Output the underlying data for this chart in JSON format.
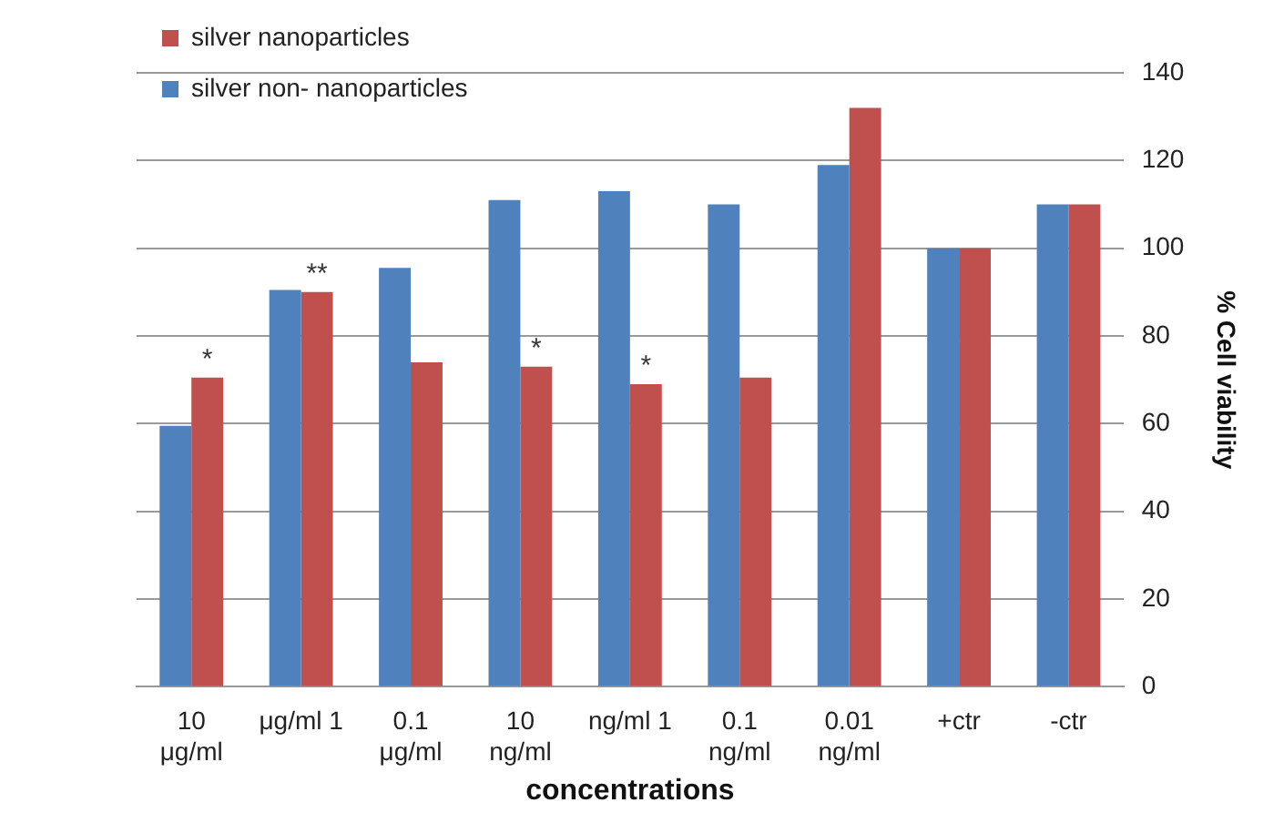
{
  "chart_data": {
    "type": "bar",
    "xlabel": "concentrations",
    "ylabel": "% Cell viability",
    "categories": [
      "10\nμg/ml",
      "μg/ml 1",
      "0.1\nμg/ml",
      "10\nng/ml",
      "ng/ml 1",
      "0.1\nng/ml",
      "0.01\nng/ml",
      "+ctr",
      "-ctr"
    ],
    "series": [
      {
        "name": "silver non- nanoparticles",
        "color": "#4f81bd",
        "values": [
          59.5,
          90.5,
          95.5,
          111,
          113,
          110,
          119,
          100,
          110
        ]
      },
      {
        "name": "silver nanoparticles",
        "color": "#c0504d",
        "values": [
          70.5,
          90,
          74,
          73,
          69,
          70.5,
          132,
          100,
          110
        ]
      }
    ],
    "ylim": [
      0,
      140
    ],
    "yticks": [
      0,
      20,
      40,
      60,
      80,
      100,
      120,
      140
    ],
    "grid": "y",
    "legend": "top left",
    "annotations": [
      {
        "text": "*",
        "x": "10\nμg/ml",
        "y": 70.5
      },
      {
        "text": "**",
        "x": "μg/ml 1",
        "y": 90
      },
      {
        "text": "*",
        "x": "10\nng/ml",
        "y": 73
      },
      {
        "text": "*",
        "x": "ng/ml 1",
        "y": 69
      }
    ]
  }
}
